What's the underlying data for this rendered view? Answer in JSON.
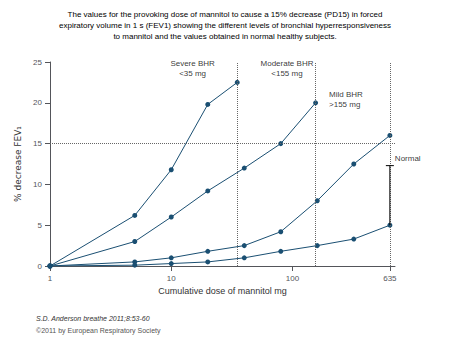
{
  "chart_data": {
    "type": "line",
    "title": [
      "The values for the provoking dose of mannitol to cause a 15% decrease (PD15) in forced",
      "expiratory volume in 1 s (FEV1) showing the different levels of bronchial hyperresponsiveness",
      "to mannitol and the values obtained in normal healthy subjects."
    ],
    "xlabel": "Cumulative dose of mannitol mg",
    "ylabel": "% decrease FEV₁",
    "log": "x",
    "xlim": [
      1,
      700
    ],
    "xticks": [
      1,
      10,
      100,
      635
    ],
    "ylim": [
      0,
      25
    ],
    "yticks": [
      0,
      5,
      10,
      15,
      20,
      25
    ],
    "grid": false,
    "color": "#1a4f72",
    "marker": "circle",
    "series": [
      {
        "x": [
          1,
          5,
          10,
          20,
          35
        ],
        "values": [
          0,
          6.2,
          11.8,
          19.8,
          22.5
        ]
      },
      {
        "x": [
          1,
          5,
          10,
          20,
          40,
          80,
          155
        ],
        "values": [
          0,
          3.0,
          6.0,
          9.2,
          12.0,
          15.0,
          20.0
        ]
      },
      {
        "x": [
          1,
          5,
          10,
          20,
          40,
          80,
          160,
          320,
          635
        ],
        "values": [
          0,
          0.5,
          1.0,
          1.8,
          2.5,
          4.2,
          8.0,
          12.5,
          16.0
        ]
      },
      {
        "x": [
          1,
          5,
          10,
          20,
          40,
          80,
          160,
          320,
          635
        ],
        "values": [
          0,
          0.1,
          0.3,
          0.5,
          1.0,
          1.8,
          2.5,
          3.3,
          5.0
        ]
      }
    ],
    "hlines": [
      15
    ],
    "vlines": [
      35,
      155,
      635
    ],
    "bracket": {
      "x": 635,
      "top": 12.3,
      "bottom": 5.0
    },
    "annotations": [
      {
        "text": [
          "Severe BHR",
          "<35 mg"
        ],
        "x": 15,
        "y": 22.8
      },
      {
        "text": [
          "Moderate BHR",
          "<155 mg"
        ],
        "x": 90,
        "y": 22.8
      },
      {
        "text": [
          "Mild BHR",
          ">155 mg"
        ],
        "x": 200,
        "y": 19.1
      },
      {
        "text": [
          "Normal"
        ],
        "x": 635,
        "y": 12.3
      }
    ],
    "citation": "S.D. Anderson breathe 2011;8:53-60",
    "copyright": "©2011 by European Respiratory Society"
  }
}
